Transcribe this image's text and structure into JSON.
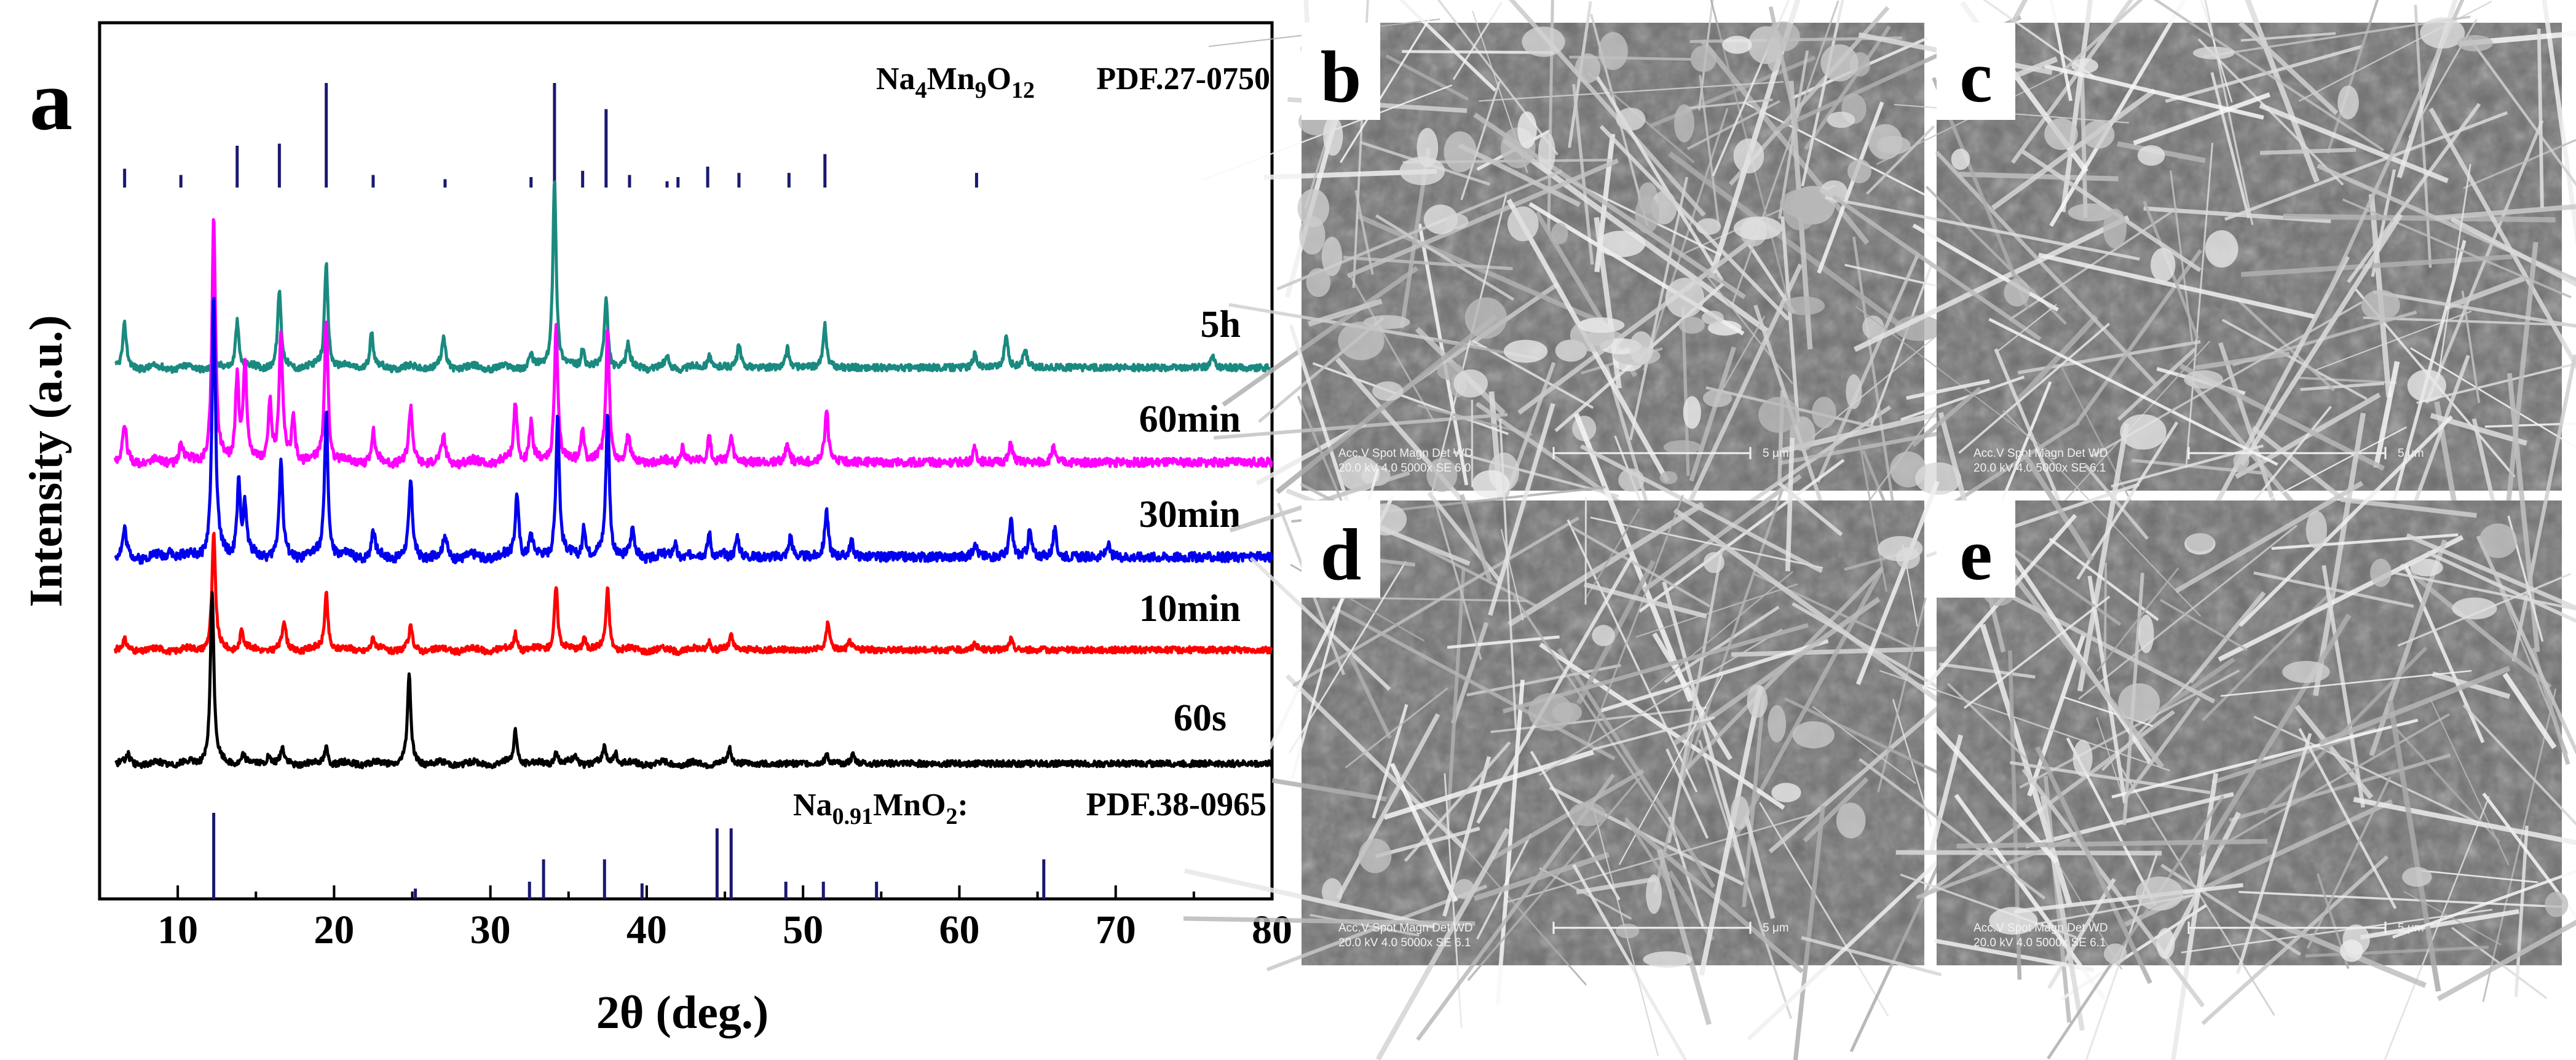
{
  "chart_data": {
    "type": "line",
    "panel_label": "a",
    "xlabel": "2θ (deg.)",
    "ylabel": "Intensity (a.u.)",
    "xlim": [
      5,
      80
    ],
    "x_ticks": [
      10,
      20,
      30,
      40,
      50,
      60,
      70,
      80
    ],
    "x_tick_labels": [
      "10",
      "20",
      "30",
      "40",
      "50",
      "60",
      "70",
      "80"
    ],
    "series": [
      {
        "name": "5h",
        "color": "#1a8a80",
        "peaks": [
          [
            6.6,
            0.22
          ],
          [
            13.8,
            0.25
          ],
          [
            16.5,
            0.4
          ],
          [
            19.5,
            0.55
          ],
          [
            22.4,
            0.18
          ],
          [
            27.0,
            0.16
          ],
          [
            32.6,
            0.06
          ],
          [
            34.1,
            1.0
          ],
          [
            35.9,
            0.1
          ],
          [
            37.4,
            0.35
          ],
          [
            38.8,
            0.12
          ],
          [
            41.3,
            0.05
          ],
          [
            44.0,
            0.08
          ],
          [
            45.9,
            0.12
          ],
          [
            49.0,
            0.1
          ],
          [
            51.4,
            0.22
          ],
          [
            61.0,
            0.08
          ],
          [
            63.0,
            0.18
          ],
          [
            64.2,
            0.1
          ],
          [
            76.2,
            0.06
          ]
        ]
      },
      {
        "name": "60min",
        "color": "#ff00ff",
        "peaks": [
          [
            6.6,
            0.15
          ],
          [
            10.2,
            0.08
          ],
          [
            12.3,
            1.0
          ],
          [
            13.8,
            0.35
          ],
          [
            14.3,
            0.4
          ],
          [
            15.9,
            0.25
          ],
          [
            16.6,
            0.5
          ],
          [
            17.4,
            0.18
          ],
          [
            19.5,
            0.6
          ],
          [
            22.5,
            0.12
          ],
          [
            24.9,
            0.22
          ],
          [
            27.0,
            0.1
          ],
          [
            31.6,
            0.25
          ],
          [
            32.6,
            0.15
          ],
          [
            34.2,
            0.55
          ],
          [
            35.9,
            0.15
          ],
          [
            37.5,
            0.55
          ],
          [
            38.8,
            0.1
          ],
          [
            42.3,
            0.08
          ],
          [
            44.0,
            0.12
          ],
          [
            45.4,
            0.1
          ],
          [
            49.0,
            0.08
          ],
          [
            51.5,
            0.22
          ],
          [
            61.0,
            0.06
          ],
          [
            63.3,
            0.08
          ],
          [
            66.0,
            0.06
          ]
        ]
      },
      {
        "name": "30min",
        "color": "#0000ee",
        "peaks": [
          [
            6.6,
            0.1
          ],
          [
            9.5,
            0.04
          ],
          [
            12.3,
            1.0
          ],
          [
            13.9,
            0.28
          ],
          [
            14.3,
            0.18
          ],
          [
            16.6,
            0.36
          ],
          [
            19.5,
            0.55
          ],
          [
            22.5,
            0.1
          ],
          [
            24.9,
            0.28
          ],
          [
            27.1,
            0.08
          ],
          [
            31.7,
            0.25
          ],
          [
            32.6,
            0.08
          ],
          [
            34.3,
            0.55
          ],
          [
            36.0,
            0.12
          ],
          [
            37.5,
            0.55
          ],
          [
            39.1,
            0.1
          ],
          [
            41.8,
            0.06
          ],
          [
            44.0,
            0.1
          ],
          [
            45.8,
            0.08
          ],
          [
            49.2,
            0.08
          ],
          [
            51.5,
            0.18
          ],
          [
            53.1,
            0.06
          ],
          [
            61.0,
            0.06
          ],
          [
            63.3,
            0.14
          ],
          [
            64.5,
            0.1
          ],
          [
            66.1,
            0.1
          ],
          [
            69.5,
            0.05
          ]
        ]
      },
      {
        "name": "10min",
        "color": "#ff0000",
        "peaks": [
          [
            6.6,
            0.05
          ],
          [
            12.3,
            0.65
          ],
          [
            14.1,
            0.12
          ],
          [
            16.8,
            0.16
          ],
          [
            19.5,
            0.32
          ],
          [
            22.5,
            0.06
          ],
          [
            24.9,
            0.12
          ],
          [
            31.6,
            0.1
          ],
          [
            34.2,
            0.36
          ],
          [
            36.0,
            0.08
          ],
          [
            37.5,
            0.34
          ],
          [
            44.0,
            0.06
          ],
          [
            45.4,
            0.08
          ],
          [
            51.6,
            0.16
          ],
          [
            53.0,
            0.05
          ],
          [
            61.0,
            0.04
          ],
          [
            63.3,
            0.06
          ]
        ]
      },
      {
        "name": "60s",
        "color": "#000000",
        "peaks": [
          [
            6.8,
            0.05
          ],
          [
            12.2,
            1.0
          ],
          [
            14.2,
            0.05
          ],
          [
            15.8,
            0.05
          ],
          [
            16.7,
            0.08
          ],
          [
            19.5,
            0.1
          ],
          [
            24.8,
            0.5
          ],
          [
            31.6,
            0.2
          ],
          [
            34.2,
            0.08
          ],
          [
            35.4,
            0.05
          ],
          [
            37.3,
            0.1
          ],
          [
            38.0,
            0.07
          ],
          [
            45.3,
            0.09
          ],
          [
            51.5,
            0.05
          ],
          [
            53.2,
            0.05
          ]
        ]
      }
    ],
    "reference_patterns": [
      {
        "formula_html": "Na<tspan font-size='40' dy='14'>4</tspan><tspan dy='-14'>Mn</tspan><tspan font-size='40' dy='14'>9</tspan><tspan dy='-14'>O</tspan><tspan font-size='40' dy='14'>12</tspan>",
        "formula_parts": [
          [
            "Na",
            ""
          ],
          [
            "4",
            "sub"
          ],
          [
            "Mn",
            ""
          ],
          [
            "9",
            "sub"
          ],
          [
            "O",
            ""
          ],
          [
            "12",
            "sub"
          ]
        ],
        "card": "PDF.27-0750",
        "color": "#191970",
        "lines": [
          [
            6.6,
            0.18
          ],
          [
            10.2,
            0.12
          ],
          [
            13.8,
            0.4
          ],
          [
            16.5,
            0.42
          ],
          [
            19.5,
            1.0
          ],
          [
            22.5,
            0.12
          ],
          [
            27.1,
            0.08
          ],
          [
            32.6,
            0.1
          ],
          [
            34.1,
            1.0
          ],
          [
            35.9,
            0.16
          ],
          [
            37.4,
            0.75
          ],
          [
            38.9,
            0.12
          ],
          [
            41.3,
            0.06
          ],
          [
            42.0,
            0.1
          ],
          [
            43.9,
            0.2
          ],
          [
            45.9,
            0.14
          ],
          [
            49.1,
            0.14
          ],
          [
            51.4,
            0.32
          ],
          [
            61.1,
            0.14
          ]
        ]
      },
      {
        "formula_parts": [
          [
            "Na",
            ""
          ],
          [
            "0.91",
            "sub"
          ],
          [
            "MnO",
            ""
          ],
          [
            "2",
            "sub"
          ],
          [
            ":",
            ""
          ]
        ],
        "card": "PDF.38-0965",
        "color": "#191970",
        "lines": [
          [
            12.3,
            1.0
          ],
          [
            25.2,
            0.12
          ],
          [
            32.5,
            0.2
          ],
          [
            33.4,
            0.46
          ],
          [
            37.3,
            0.46
          ],
          [
            39.7,
            0.18
          ],
          [
            44.5,
            0.82
          ],
          [
            45.4,
            0.82
          ],
          [
            48.9,
            0.2
          ],
          [
            51.3,
            0.2
          ],
          [
            54.7,
            0.2
          ],
          [
            65.4,
            0.46
          ]
        ]
      }
    ]
  },
  "sem_panels": [
    {
      "label": "b",
      "info_line1": "Acc.V  Spot Magn    Det  WD",
      "info_line2": "20.0 kV 4.0   5000x    SE   6.0",
      "scale": "5 μm"
    },
    {
      "label": "c",
      "info_line1": "Acc.V  Spot Magn    Det  WD",
      "info_line2": "20.0 kV 4.0   5000x    SE   6.1",
      "scale": "5 μm"
    },
    {
      "label": "d",
      "info_line1": "Acc.V  Spot Magn    Det  WD",
      "info_line2": "20.0 kV 4.0   5000x    SE   6.1",
      "scale": "5 μm"
    },
    {
      "label": "e",
      "info_line1": "Acc.V  Spot Magn    Det  WD",
      "info_line2": "20.0 kV 4.0   5000x    SE   6.1",
      "scale": "5 μm"
    }
  ]
}
